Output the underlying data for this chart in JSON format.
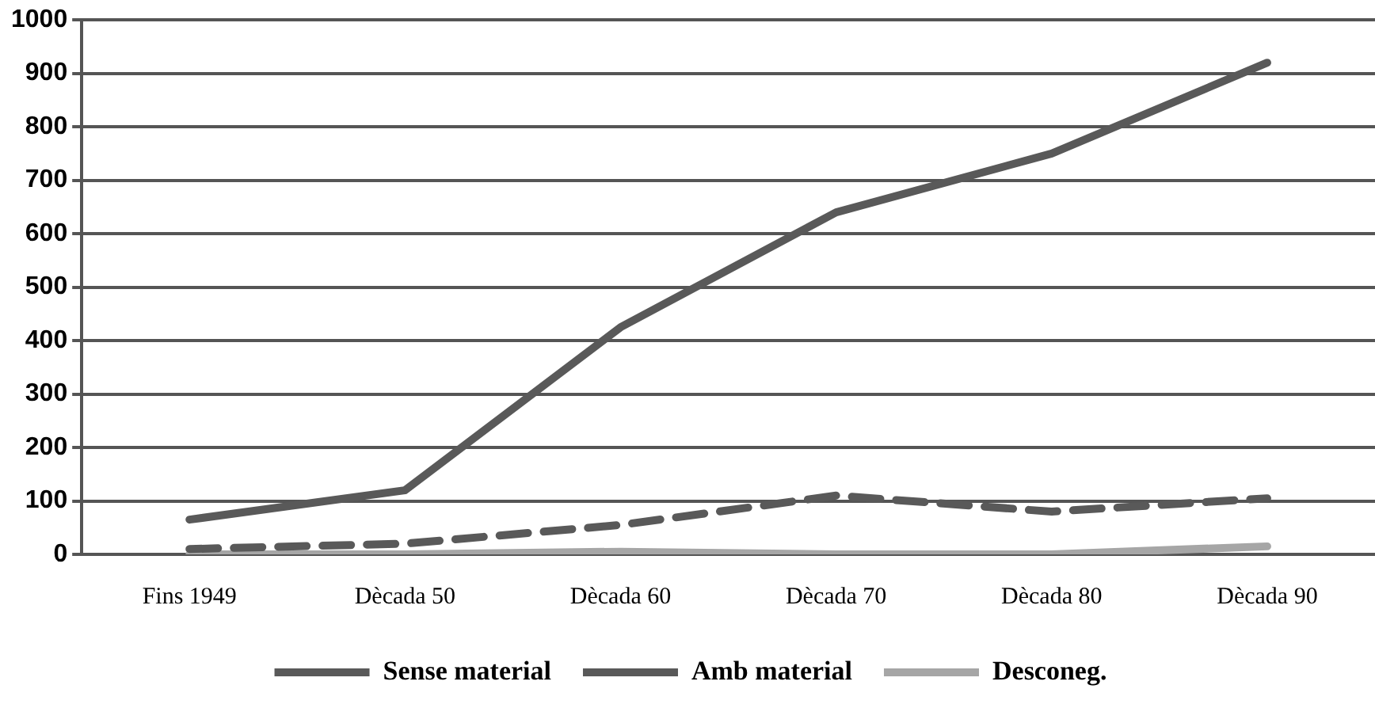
{
  "chart_data": {
    "type": "line",
    "categories": [
      "Fins 1949",
      "Dècada 50",
      "Dècada 60",
      "Dècada 70",
      "Dècada 80",
      "Dècada 90"
    ],
    "series": [
      {
        "name": "Sense material",
        "color": "#595959",
        "line_style": "dashed",
        "values": [
          10,
          20,
          55,
          110,
          80,
          105
        ]
      },
      {
        "name": "Amb material",
        "color": "#595959",
        "line_style": "solid",
        "values": [
          65,
          120,
          425,
          640,
          750,
          920
        ]
      },
      {
        "name": "Desconeg.",
        "color": "#a6a6a6",
        "line_style": "solid",
        "values": [
          0,
          0,
          5,
          0,
          0,
          15
        ]
      }
    ],
    "ylim": [
      0,
      1000
    ],
    "yticks": [
      0,
      100,
      200,
      300,
      400,
      500,
      600,
      700,
      800,
      900,
      1000
    ],
    "grid": "y",
    "legend": "bottom",
    "marker": "none"
  }
}
